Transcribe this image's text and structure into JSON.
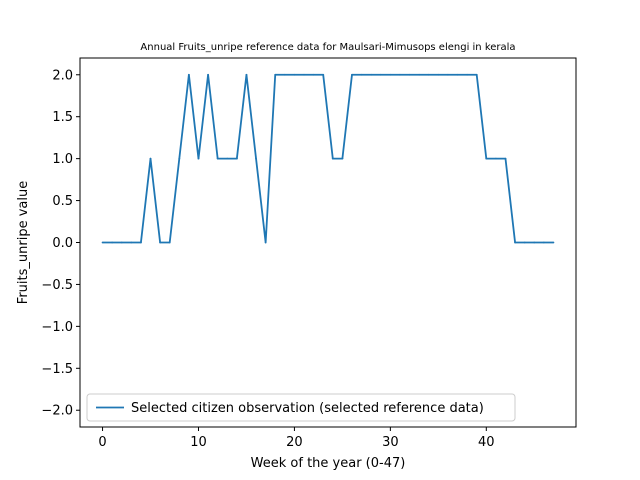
{
  "chart_data": {
    "type": "line",
    "title": "Annual Fruits_unripe reference data for Maulsari-Mimusops elengi in kerala",
    "xlabel": "Week of the year (0-47)",
    "ylabel": "Fruits_unripe value",
    "xlim": [
      -2.35,
      49.35
    ],
    "ylim": [
      -2.2,
      2.2
    ],
    "x_ticks": [
      0,
      10,
      20,
      30,
      40
    ],
    "y_ticks": [
      -2.0,
      -1.5,
      -1.0,
      -0.5,
      0.0,
      0.5,
      1.0,
      1.5,
      2.0
    ],
    "y_tick_labels": [
      "−2.0",
      "−1.5",
      "−1.0",
      "−0.5",
      "0.0",
      "0.5",
      "1.0",
      "1.5",
      "2.0"
    ],
    "grid": false,
    "legend_position": "lower-left",
    "series": [
      {
        "name": "Selected citizen observation (selected reference data)",
        "color": "#1f77b4",
        "x": [
          0,
          1,
          2,
          3,
          4,
          5,
          6,
          7,
          8,
          9,
          10,
          11,
          12,
          13,
          14,
          15,
          16,
          17,
          18,
          19,
          20,
          21,
          22,
          23,
          24,
          25,
          26,
          27,
          28,
          29,
          30,
          31,
          32,
          33,
          34,
          35,
          36,
          37,
          38,
          39,
          40,
          41,
          42,
          43,
          44,
          45,
          46,
          47
        ],
        "values": [
          0,
          0,
          0,
          0,
          0,
          1,
          0,
          0,
          1,
          2,
          1,
          2,
          1,
          1,
          1,
          2,
          1,
          0,
          2,
          2,
          2,
          2,
          2,
          2,
          1,
          1,
          2,
          2,
          2,
          2,
          2,
          2,
          2,
          2,
          2,
          2,
          2,
          2,
          2,
          2,
          1,
          1,
          1,
          0,
          0,
          0,
          0,
          0
        ]
      }
    ]
  }
}
